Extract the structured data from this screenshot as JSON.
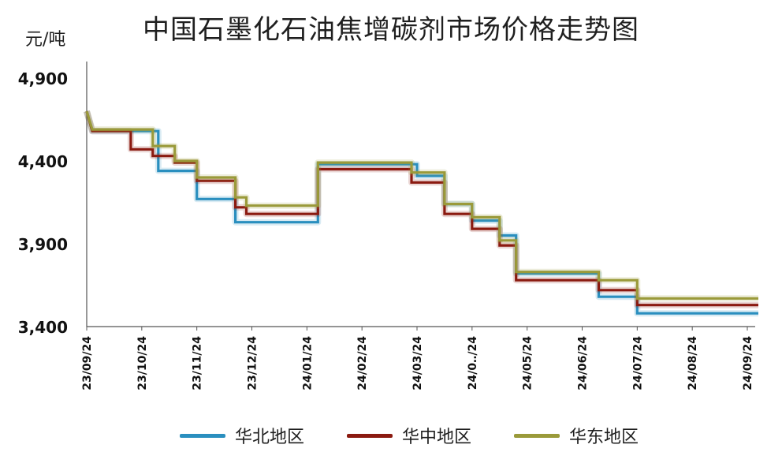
{
  "title": "中国石墨化石油焦增碳剂市场价格走势图",
  "y_unit_label": "元/吨",
  "chart_data": {
    "type": "line",
    "title": "中国石墨化石油焦增碳剂市场价格走势图",
    "ylabel": "元/吨",
    "xlabel": "",
    "ylim": [
      3400,
      5000
    ],
    "yticks": [
      3400,
      3900,
      4400,
      4900
    ],
    "ytick_labels": [
      "3,400",
      "3,900",
      "4,400",
      "4,900"
    ],
    "x_tick_labels": [
      "23/09/24",
      "23/10/24",
      "23/11/24",
      "23/12/24",
      "24/01/24",
      "24/02/24",
      "24/03/24",
      "24/0‥/24",
      "24/05/24",
      "24/06/24",
      "24/07/24",
      "24/08/24",
      "24/09/24"
    ],
    "x_range": [
      0,
      12
    ],
    "grid": false,
    "legend_position": "bottom",
    "series": [
      {
        "name": "华北地区",
        "color": "#2a8fbf",
        "points": [
          [
            0,
            4700
          ],
          [
            0.1,
            4580
          ],
          [
            1.3,
            4580
          ],
          [
            1.3,
            4340
          ],
          [
            2.0,
            4340
          ],
          [
            2.0,
            4170
          ],
          [
            2.7,
            4170
          ],
          [
            2.7,
            4030
          ],
          [
            4.2,
            4030
          ],
          [
            4.2,
            4380
          ],
          [
            6.0,
            4380
          ],
          [
            6.0,
            4310
          ],
          [
            6.5,
            4310
          ],
          [
            6.5,
            4140
          ],
          [
            7.0,
            4140
          ],
          [
            7.0,
            4040
          ],
          [
            7.5,
            4040
          ],
          [
            7.5,
            3950
          ],
          [
            7.8,
            3950
          ],
          [
            7.8,
            3720
          ],
          [
            9.3,
            3720
          ],
          [
            9.3,
            3580
          ],
          [
            10.0,
            3580
          ],
          [
            10.0,
            3480
          ],
          [
            12.2,
            3480
          ]
        ]
      },
      {
        "name": "华中地区",
        "color": "#8b1a10",
        "points": [
          [
            0,
            4700
          ],
          [
            0.1,
            4580
          ],
          [
            0.8,
            4580
          ],
          [
            0.8,
            4470
          ],
          [
            1.2,
            4470
          ],
          [
            1.2,
            4430
          ],
          [
            1.6,
            4430
          ],
          [
            1.6,
            4390
          ],
          [
            2.0,
            4390
          ],
          [
            2.0,
            4280
          ],
          [
            2.7,
            4280
          ],
          [
            2.7,
            4120
          ],
          [
            2.9,
            4120
          ],
          [
            2.9,
            4080
          ],
          [
            4.2,
            4080
          ],
          [
            4.2,
            4350
          ],
          [
            5.9,
            4350
          ],
          [
            5.9,
            4270
          ],
          [
            6.5,
            4270
          ],
          [
            6.5,
            4080
          ],
          [
            7.0,
            4080
          ],
          [
            7.0,
            3990
          ],
          [
            7.5,
            3990
          ],
          [
            7.5,
            3890
          ],
          [
            7.8,
            3890
          ],
          [
            7.8,
            3680
          ],
          [
            9.3,
            3680
          ],
          [
            9.3,
            3620
          ],
          [
            10.0,
            3620
          ],
          [
            10.0,
            3530
          ],
          [
            12.2,
            3530
          ]
        ]
      },
      {
        "name": "华东地区",
        "color": "#9a9a3a",
        "points": [
          [
            0,
            4700
          ],
          [
            0.1,
            4590
          ],
          [
            1.2,
            4590
          ],
          [
            1.2,
            4490
          ],
          [
            1.6,
            4490
          ],
          [
            1.6,
            4400
          ],
          [
            2.0,
            4400
          ],
          [
            2.0,
            4300
          ],
          [
            2.7,
            4300
          ],
          [
            2.7,
            4180
          ],
          [
            2.9,
            4180
          ],
          [
            2.9,
            4130
          ],
          [
            4.2,
            4130
          ],
          [
            4.2,
            4390
          ],
          [
            5.9,
            4390
          ],
          [
            5.9,
            4330
          ],
          [
            6.5,
            4330
          ],
          [
            6.5,
            4140
          ],
          [
            7.0,
            4140
          ],
          [
            7.0,
            4060
          ],
          [
            7.5,
            4060
          ],
          [
            7.5,
            3920
          ],
          [
            7.8,
            3920
          ],
          [
            7.8,
            3730
          ],
          [
            9.3,
            3730
          ],
          [
            9.3,
            3680
          ],
          [
            10.0,
            3680
          ],
          [
            10.0,
            3570
          ],
          [
            12.2,
            3570
          ]
        ]
      }
    ]
  }
}
